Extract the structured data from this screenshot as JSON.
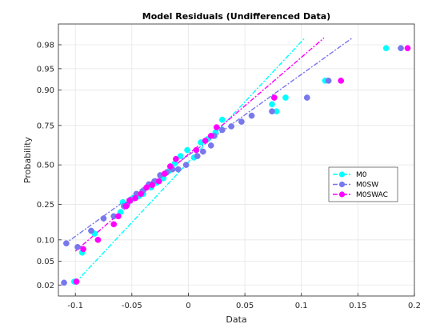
{
  "chart_data": {
    "type": "scatter",
    "title": "Model Residuals (Undifferenced Data)",
    "xlabel": "Data",
    "ylabel": "Probability",
    "xlim": [
      -0.115,
      0.2
    ],
    "x_ticks": [
      -0.1,
      -0.05,
      0,
      0.05,
      0.1,
      0.15,
      0.2
    ],
    "x_tick_labels": [
      "-0.1",
      "-0.05",
      "0",
      "0.05",
      "0.1",
      "0.15",
      "0.2"
    ],
    "y_scale": "normal-probability",
    "y_ticks": [
      0.02,
      0.05,
      0.1,
      0.25,
      0.5,
      0.75,
      0.9,
      0.95,
      0.98
    ],
    "y_tick_labels": [
      "0.02",
      "0.05",
      "0.10",
      "0.25",
      "0.50",
      "0.75",
      "0.90",
      "0.95",
      "0.98"
    ],
    "grid": true,
    "legend_position": "right",
    "series": [
      {
        "name": "M0",
        "color": "#00ffff",
        "points": [
          [
            -0.101,
            0.023
          ],
          [
            -0.094,
            0.067
          ],
          [
            -0.083,
            0.12
          ],
          [
            -0.06,
            0.21
          ],
          [
            -0.058,
            0.262
          ],
          [
            -0.055,
            0.24
          ],
          [
            -0.049,
            0.285
          ],
          [
            -0.044,
            0.295
          ],
          [
            -0.04,
            0.31
          ],
          [
            -0.033,
            0.35
          ],
          [
            -0.028,
            0.38
          ],
          [
            -0.022,
            0.41
          ],
          [
            -0.017,
            0.46
          ],
          [
            -0.012,
            0.51
          ],
          [
            -0.007,
            0.56
          ],
          [
            -0.001,
            0.6
          ],
          [
            0.005,
            0.55
          ],
          [
            0.011,
            0.65
          ],
          [
            0.017,
            0.67
          ],
          [
            0.022,
            0.69
          ],
          [
            0.024,
            0.71
          ],
          [
            0.03,
            0.78
          ],
          [
            0.074,
            0.85
          ],
          [
            0.078,
            0.82
          ],
          [
            0.086,
            0.875
          ],
          [
            0.121,
            0.925
          ],
          [
            0.175,
            0.977
          ]
        ],
        "fit_line": [
          [
            -0.1,
            0.022
          ],
          [
            0.103,
            0.985
          ]
        ]
      },
      {
        "name": "M0SW",
        "color": "#7777ee",
        "points": [
          [
            -0.11,
            0.022
          ],
          [
            -0.108,
            0.09
          ],
          [
            -0.098,
            0.08
          ],
          [
            -0.086,
            0.13
          ],
          [
            -0.075,
            0.18
          ],
          [
            -0.066,
            0.19
          ],
          [
            -0.057,
            0.24
          ],
          [
            -0.054,
            0.25
          ],
          [
            -0.051,
            0.275
          ],
          [
            -0.046,
            0.31
          ],
          [
            -0.04,
            0.33
          ],
          [
            -0.035,
            0.37
          ],
          [
            -0.03,
            0.39
          ],
          [
            -0.025,
            0.43
          ],
          [
            -0.019,
            0.45
          ],
          [
            -0.014,
            0.47
          ],
          [
            -0.009,
            0.47
          ],
          [
            -0.002,
            0.5
          ],
          [
            0.008,
            0.56
          ],
          [
            0.013,
            0.59
          ],
          [
            0.02,
            0.63
          ],
          [
            0.023,
            0.69
          ],
          [
            0.03,
            0.725
          ],
          [
            0.038,
            0.745
          ],
          [
            0.047,
            0.77
          ],
          [
            0.056,
            0.8
          ],
          [
            0.074,
            0.82
          ],
          [
            0.105,
            0.875
          ],
          [
            0.124,
            0.925
          ],
          [
            0.188,
            0.977
          ]
        ],
        "fit_line": [
          [
            -0.11,
            0.087
          ],
          [
            0.145,
            0.985
          ]
        ]
      },
      {
        "name": "M0SWAC",
        "color": "#ff00ff",
        "points": [
          [
            -0.099,
            0.023
          ],
          [
            -0.093,
            0.075
          ],
          [
            -0.08,
            0.1
          ],
          [
            -0.066,
            0.155
          ],
          [
            -0.062,
            0.19
          ],
          [
            -0.055,
            0.24
          ],
          [
            -0.052,
            0.27
          ],
          [
            -0.047,
            0.285
          ],
          [
            -0.042,
            0.31
          ],
          [
            -0.037,
            0.35
          ],
          [
            -0.032,
            0.365
          ],
          [
            -0.026,
            0.39
          ],
          [
            -0.021,
            0.44
          ],
          [
            -0.016,
            0.49
          ],
          [
            -0.011,
            0.54
          ],
          [
            0.007,
            0.6
          ],
          [
            0.015,
            0.66
          ],
          [
            0.02,
            0.69
          ],
          [
            0.025,
            0.74
          ],
          [
            0.076,
            0.875
          ],
          [
            0.135,
            0.925
          ],
          [
            0.194,
            0.977
          ]
        ],
        "fit_line": [
          [
            -0.1,
            0.07
          ],
          [
            0.12,
            0.985
          ]
        ]
      }
    ]
  }
}
